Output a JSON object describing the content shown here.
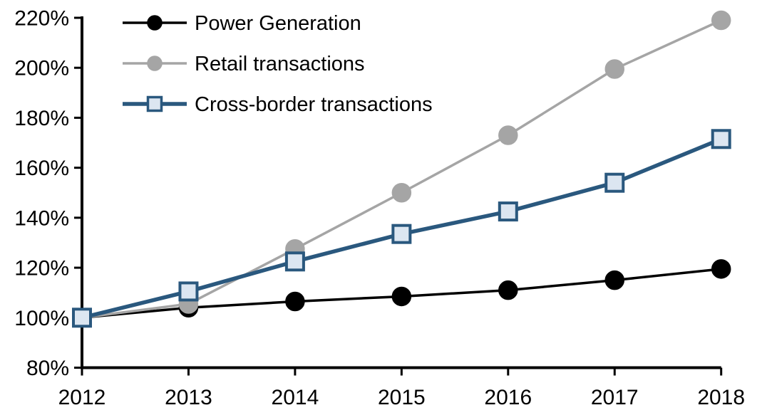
{
  "chart_data": {
    "type": "line",
    "title": "",
    "xlabel": "",
    "ylabel": "",
    "x": [
      "2012",
      "2013",
      "2014",
      "2015",
      "2016",
      "2017",
      "2018"
    ],
    "series": [
      {
        "name": "Power Generation",
        "values": [
          100,
          104,
          106.5,
          108.5,
          111,
          115,
          119.5
        ],
        "color": "#000000",
        "marker": "circle",
        "marker_fill": "#000000",
        "marker_stroke": "#000000",
        "line_width": 3.5
      },
      {
        "name": "Retail transactions",
        "values": [
          100,
          105.5,
          127.5,
          150,
          173,
          199.5,
          219
        ],
        "color": "#A5A5A5",
        "marker": "circle",
        "marker_fill": "#A5A5A5",
        "marker_stroke": "#A5A5A5",
        "line_width": 3.5
      },
      {
        "name": "Cross-border transactions",
        "values": [
          100,
          110.5,
          122.5,
          133.5,
          142.5,
          154,
          171.5
        ],
        "color": "#2A587E",
        "marker": "square",
        "marker_fill": "#DCE6F1",
        "marker_stroke": "#2A587E",
        "line_width": 5.5
      }
    ],
    "yaxis": {
      "min": 80,
      "max": 220,
      "step": 20,
      "tick_suffix": "%",
      "tick_labels": [
        "80%",
        "100%",
        "120%",
        "140%",
        "160%",
        "180%",
        "200%",
        "220%"
      ]
    },
    "legend_position": "top-left",
    "grid": false,
    "axis_color": "#000000",
    "background_color": "#FFFFFF"
  }
}
